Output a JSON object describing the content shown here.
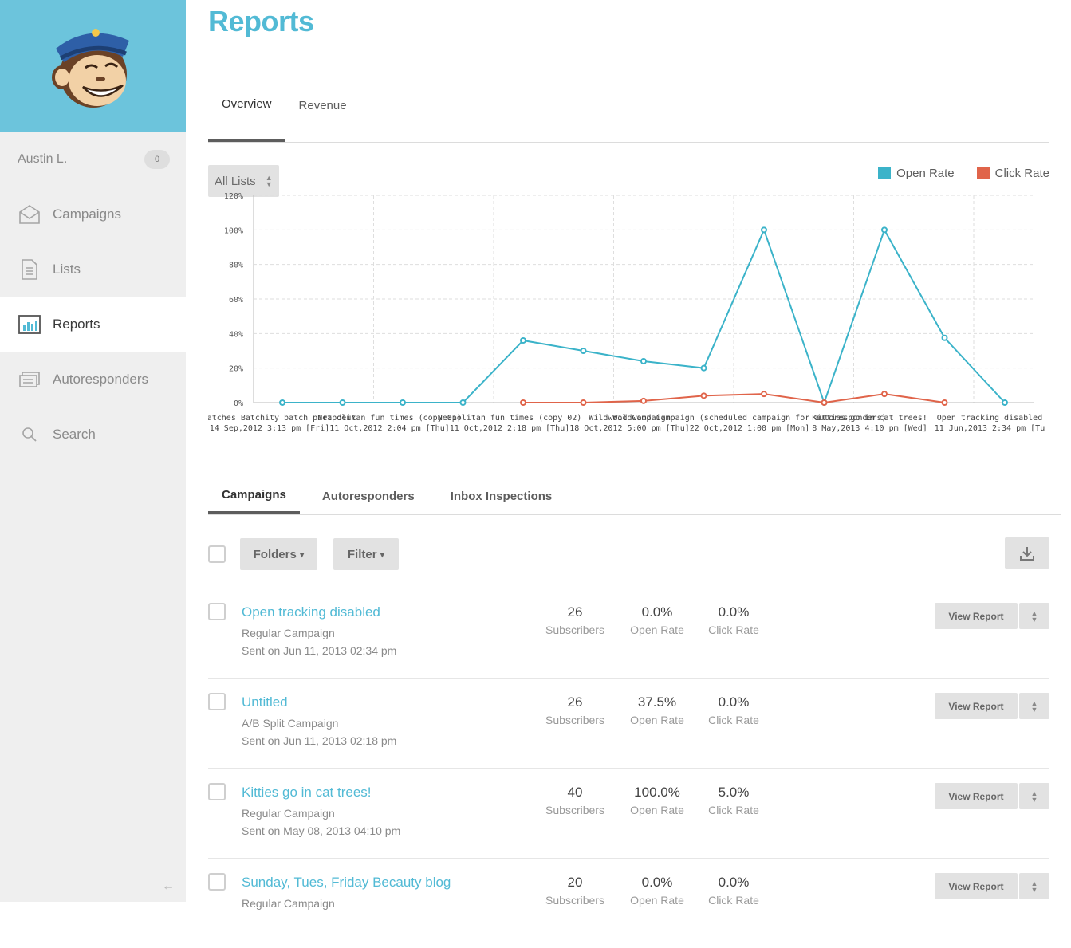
{
  "sidebar": {
    "user": {
      "name": "Austin L.",
      "badge": "0"
    },
    "items": [
      {
        "label": "Campaigns",
        "icon": "envelope-icon"
      },
      {
        "label": "Lists",
        "icon": "document-icon"
      },
      {
        "label": "Reports",
        "icon": "bar-chart-icon",
        "active": true
      },
      {
        "label": "Autoresponders",
        "icon": "autoresponder-icon"
      },
      {
        "label": "Search",
        "icon": "search-icon"
      }
    ],
    "collapse_glyph": "←"
  },
  "page": {
    "title": "Reports"
  },
  "report_tabs": [
    "Overview",
    "Revenue"
  ],
  "filter": {
    "selected": "All Lists"
  },
  "legend": [
    {
      "label": "Open Rate",
      "color": "#3bb3c9"
    },
    {
      "label": "Click Rate",
      "color": "#e0644a"
    }
  ],
  "chart_data": {
    "type": "line",
    "y_ticks": [
      "120%",
      "100%",
      "80%",
      "60%",
      "40%",
      "20%",
      "0%"
    ],
    "ylim": [
      0,
      120
    ],
    "grid": true,
    "x_labels": [
      {
        "name": "ies Batches Batchity batch part deux",
        "date": "14 Sep,2012 3:13 pm [Fri]"
      },
      {
        "name": "Neapolitan fun times (copy 01)",
        "date": "11 Oct,2012 2:04 pm [Thu]"
      },
      {
        "name": "Neapolitan fun times (copy 02)",
        "date": "11 Oct,2012 2:18 pm [Thu]"
      },
      {
        "name": "Wildwood Campaign",
        "date": "18 Oct,2012 5:00 pm [Thu]"
      },
      {
        "name": "Wildwood Campaign (scheduled campaign for autoresponders)",
        "date": "22 Oct,2012 1:00 pm [Mon]"
      },
      {
        "name": "Kitties go in cat trees!",
        "date": "8 May,2013 4:10 pm [Wed]"
      },
      {
        "name": "Open tracking disabled",
        "date": "11 Jun,2013 2:34 pm [Tu"
      }
    ],
    "series": [
      {
        "name": "Open Rate",
        "color": "#3bb3c9",
        "values": [
          0,
          0,
          0,
          0,
          36,
          30,
          24,
          20,
          100,
          0,
          100,
          37.5,
          0
        ]
      },
      {
        "name": "Click Rate",
        "color": "#e0644a",
        "values": [
          null,
          null,
          null,
          null,
          0,
          0,
          1,
          4,
          5,
          0,
          5,
          0,
          null
        ]
      }
    ]
  },
  "list_tabs": [
    "Campaigns",
    "Autoresponders",
    "Inbox Inspections"
  ],
  "toolbar": {
    "folders": "Folders",
    "filter": "Filter",
    "caret": "▾"
  },
  "campaigns": [
    {
      "name": "Open tracking disabled",
      "type": "Regular Campaign",
      "sent": "Sent on Jun 11, 2013 02:34 pm",
      "subscribers": "26",
      "open_rate": "0.0%",
      "click_rate": "0.0%"
    },
    {
      "name": "Untitled",
      "type": "A/B Split Campaign",
      "sent": "Sent on Jun 11, 2013 02:18 pm",
      "subscribers": "26",
      "open_rate": "37.5%",
      "click_rate": "0.0%"
    },
    {
      "name": "Kitties go in cat trees!",
      "type": "Regular Campaign",
      "sent": "Sent on May 08, 2013 04:10 pm",
      "subscribers": "40",
      "open_rate": "100.0%",
      "click_rate": "5.0%"
    },
    {
      "name": "Sunday, Tues, Friday Becauty blog",
      "type": "Regular Campaign",
      "sent": "",
      "subscribers": "20",
      "open_rate": "0.0%",
      "click_rate": "0.0%"
    }
  ],
  "labels": {
    "subscribers": "Subscribers",
    "open_rate": "Open Rate",
    "click_rate": "Click Rate",
    "view_report": "View Report"
  }
}
